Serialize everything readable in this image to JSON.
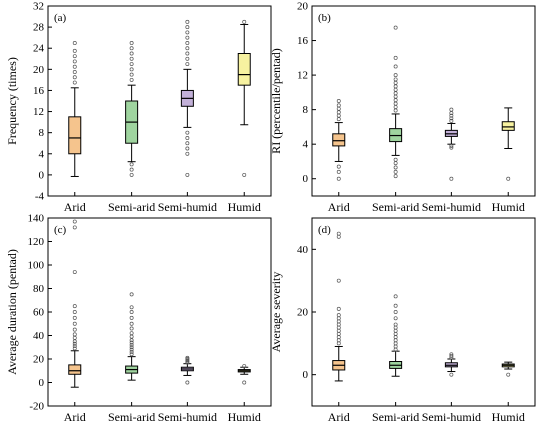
{
  "chart_data": [
    {
      "type": "box",
      "panel": "(a)",
      "ylabel": "Frequency (times)",
      "ylim": [
        -4,
        32
      ],
      "yticks": [
        -4,
        0,
        4,
        8,
        12,
        16,
        20,
        24,
        28,
        32
      ],
      "categories": [
        "Arid",
        "Semi-arid",
        "Semi-humid",
        "Humid"
      ],
      "colors": [
        "#f5c48d",
        "#9fd49f",
        "#c2b0d8",
        "#f7f2a0"
      ],
      "boxes": [
        {
          "whisker_low": -0.3,
          "q1": 4,
          "median": 7,
          "q3": 11,
          "whisker_high": 16.5,
          "outliers": [
            17.5,
            18.5,
            19.5,
            20.5,
            21.5,
            22.5,
            23.5,
            25
          ]
        },
        {
          "whisker_low": 2.5,
          "q1": 6,
          "median": 10,
          "q3": 14,
          "whisker_high": 17,
          "outliers": [
            0,
            1,
            2,
            18,
            19,
            20,
            21,
            22,
            23,
            24,
            25
          ]
        },
        {
          "whisker_low": 9,
          "q1": 13,
          "median": 14.5,
          "q3": 16,
          "whisker_high": 20,
          "outliers": [
            0,
            4,
            5,
            6,
            7,
            8,
            21,
            22,
            23,
            24,
            25,
            26,
            27,
            28,
            29
          ]
        },
        {
          "whisker_low": 9.5,
          "q1": 17,
          "median": 19,
          "q3": 23,
          "whisker_high": 28.5,
          "outliers": [
            0,
            29
          ]
        }
      ]
    },
    {
      "type": "box",
      "panel": "(b)",
      "ylabel": "RI (percentile/pentad)",
      "ylim": [
        -2,
        20
      ],
      "yticks": [
        0,
        4,
        8,
        12,
        16,
        20
      ],
      "categories": [
        "Arid",
        "Semi-arid",
        "Semi-humid",
        "Humid"
      ],
      "colors": [
        "#f5c48d",
        "#9fd49f",
        "#c2b0d8",
        "#f7f2a0"
      ],
      "boxes": [
        {
          "whisker_low": 2,
          "q1": 3.8,
          "median": 4.4,
          "q3": 5.2,
          "whisker_high": 6.5,
          "outliers": [
            0,
            0.8,
            1.4,
            6.9,
            7.3,
            7.7,
            8.1,
            8.5,
            9
          ]
        },
        {
          "whisker_low": 2.7,
          "q1": 4.3,
          "median": 5,
          "q3": 5.8,
          "whisker_high": 7.5,
          "outliers": [
            0.3,
            0.8,
            1.3,
            1.8,
            2.2,
            7.9,
            8.3,
            8.7,
            9.1,
            9.5,
            9.9,
            10.3,
            10.7,
            11.1,
            11.5,
            12,
            13,
            14,
            17.5
          ]
        },
        {
          "whisker_low": 4,
          "q1": 4.9,
          "median": 5.2,
          "q3": 5.6,
          "whisker_high": 6.4,
          "outliers": [
            0,
            3.6,
            3.8,
            6.7,
            7,
            7.3,
            7.6,
            8
          ]
        },
        {
          "whisker_low": 3.5,
          "q1": 5.6,
          "median": 6,
          "q3": 6.6,
          "whisker_high": 8.2,
          "outliers": [
            0
          ]
        }
      ]
    },
    {
      "type": "box",
      "panel": "(c)",
      "ylabel": "Average duration (pentad)",
      "ylim": [
        -20,
        140
      ],
      "yticks": [
        -20,
        0,
        20,
        40,
        60,
        80,
        100,
        120,
        140
      ],
      "categories": [
        "Arid",
        "Semi-arid",
        "Semi-humid",
        "Humid"
      ],
      "colors": [
        "#f5c48d",
        "#9fd49f",
        "#c2b0d8",
        "#f7f2a0"
      ],
      "boxes": [
        {
          "whisker_low": -4,
          "q1": 7,
          "median": 10,
          "q3": 15,
          "whisker_high": 27,
          "outliers": [
            29,
            31,
            33,
            35,
            38,
            41,
            45,
            50,
            55,
            60,
            65,
            94,
            132,
            137
          ]
        },
        {
          "whisker_low": 2,
          "q1": 8,
          "median": 11,
          "q3": 14,
          "whisker_high": 22,
          "outliers": [
            24,
            26,
            28,
            30,
            32,
            34,
            36,
            39,
            42,
            46,
            50,
            55,
            60,
            64,
            75
          ]
        },
        {
          "whisker_low": 6,
          "q1": 10,
          "median": 11.5,
          "q3": 13,
          "whisker_high": 16,
          "outliers": [
            0,
            17,
            18,
            19,
            20,
            21
          ]
        },
        {
          "whisker_low": 7,
          "q1": 9,
          "median": 10,
          "q3": 11,
          "whisker_high": 13,
          "outliers": [
            0,
            14
          ]
        }
      ]
    },
    {
      "type": "box",
      "panel": "(d)",
      "ylabel": "Average severity",
      "ylim": [
        -10,
        50
      ],
      "yticks": [
        0,
        20,
        40
      ],
      "categories": [
        "Arid",
        "Semi-arid",
        "Semi-humid",
        "Humid"
      ],
      "colors": [
        "#f5c48d",
        "#9fd49f",
        "#c2b0d8",
        "#f7f2a0"
      ],
      "boxes": [
        {
          "whisker_low": -2,
          "q1": 1.5,
          "median": 3,
          "q3": 4.5,
          "whisker_high": 9,
          "outliers": [
            10,
            11,
            12,
            13,
            14,
            15,
            16,
            17,
            18,
            19,
            21,
            30,
            44,
            45
          ]
        },
        {
          "whisker_low": -0.5,
          "q1": 2,
          "median": 3,
          "q3": 4.2,
          "whisker_high": 7.5,
          "outliers": [
            8,
            9,
            10,
            11,
            12,
            13,
            14,
            15,
            16,
            18,
            20,
            22,
            25
          ]
        },
        {
          "whisker_low": 1,
          "q1": 2.5,
          "median": 3,
          "q3": 3.8,
          "whisker_high": 5,
          "outliers": [
            0,
            5.5,
            6,
            6.5
          ]
        },
        {
          "whisker_low": 1.8,
          "q1": 2.5,
          "median": 3,
          "q3": 3.4,
          "whisker_high": 4,
          "outliers": [
            0
          ]
        }
      ]
    }
  ]
}
